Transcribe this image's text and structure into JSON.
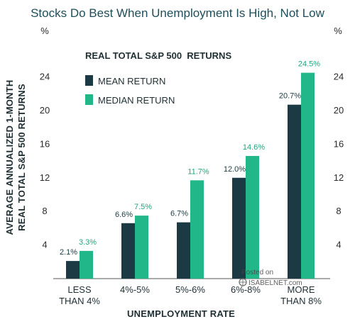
{
  "chart_data": {
    "type": "bar",
    "title": "Stocks Do Best When Unemployment Is High, Not Low",
    "xlabel": "UNEMPLOYMENT RATE",
    "ylabel": [
      "AVERAGE ANNUALIZED 1-MONTH",
      "REAL TOTAL S&P 500 RETURNS"
    ],
    "unit_label": "%",
    "legend_title": "REAL TOTAL S&P 500  RETURNS",
    "legend_position": "top-left",
    "categories": [
      [
        "LESS",
        "THAN 4%"
      ],
      [
        "4%-5%"
      ],
      [
        "5%-6%"
      ],
      [
        "6%-8%"
      ],
      [
        "MORE",
        "THAN 8%"
      ]
    ],
    "series": [
      {
        "name": "MEAN RETURN",
        "color": "#1b3a43",
        "values": [
          2.1,
          6.6,
          6.7,
          12.0,
          20.7
        ],
        "labels": [
          "2.1%",
          "6.6%",
          "6.7%",
          "12.0%",
          "20.7%"
        ],
        "label_color": "#1b3a43"
      },
      {
        "name": "MEDIAN RETURN",
        "color": "#22b789",
        "values": [
          3.3,
          7.5,
          11.7,
          14.6,
          24.5
        ],
        "labels": [
          "3.3%",
          "7.5%",
          "11.7%",
          "14.6%",
          "24.5%"
        ],
        "label_color": "#1fa67c"
      }
    ],
    "yticks": [
      4,
      8,
      12,
      16,
      20,
      24
    ],
    "ylim": [
      0,
      27
    ],
    "grid": false
  },
  "watermark": {
    "line1": "Posted on",
    "line2": "ISABELNET.com",
    "icon": "isabelnet-logo-icon"
  }
}
